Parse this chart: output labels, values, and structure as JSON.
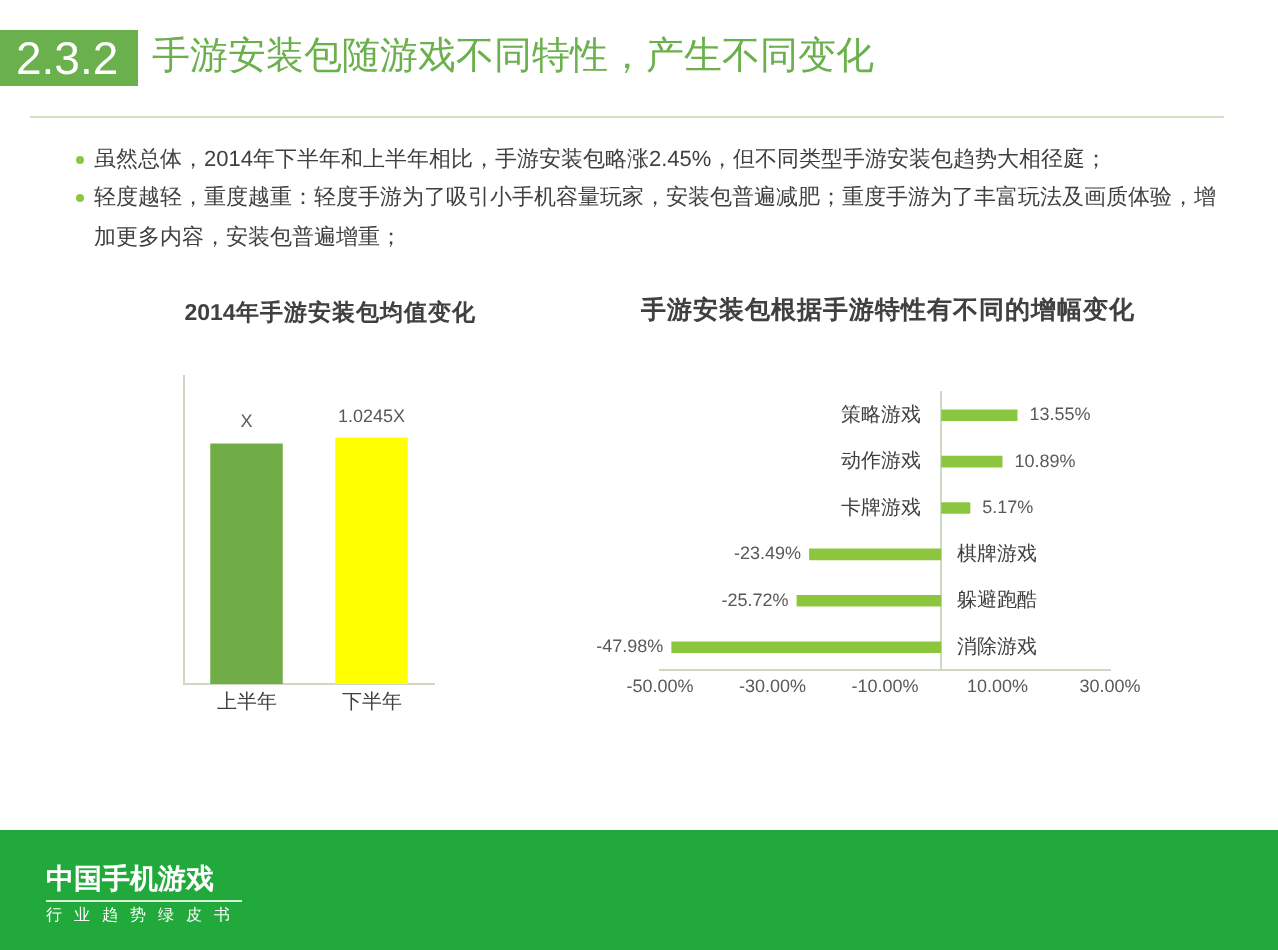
{
  "chart_data": [
    {
      "type": "other",
      "title": "手游安装包随游戏不同特性，产生不同变化",
      "annotations": [
        "2.3.2",
        "虽然总体，2014年下半年和上半年相比，手游安装包略涨2.45%，但不同类型手游安装包趋势大相径庭；",
        "轻度越轻，重度越重：轻度手游为了吸引小手机容量玩家，安装包普遍减肥；重度手游为了丰富玩法及画质体验，增加更多内容，安装包普遍增重；",
        "中国手机游戏",
        "行业趋势绿皮书"
      ]
    },
    {
      "type": "bar",
      "title": "2014年手游安装包均值变化",
      "categories": [
        "上半年",
        "下半年"
      ],
      "values": [
        1,
        1.0245
      ],
      "colors": [
        "#70ad47",
        "#ffff00"
      ],
      "value_labels": [
        "X",
        "1.0245X"
      ],
      "tick_labels": "x"
    },
    {
      "type": "bar",
      "orientation": "horizontal",
      "title": "手游安装包根据手游特性有不同的增幅变化",
      "categories": [
        "策略游戏",
        "动作游戏",
        "卡牌游戏",
        "棋牌游戏",
        "躲避跑酷",
        "消除游戏"
      ],
      "values": [
        13.55,
        10.89,
        5.17,
        -23.49,
        -25.72,
        -47.98
      ],
      "color": "#8cc63f",
      "value_labels": [
        "13.55%",
        "10.89%",
        "5.17%",
        "-23.49%",
        "-25.72%",
        "-47.98%"
      ],
      "xlim": [
        -50,
        30
      ],
      "xticks": [
        {
          "value": -50,
          "label": "-50.00%"
        },
        {
          "value": -30,
          "label": "-30.00%"
        },
        {
          "value": -10,
          "label": "-10.00%"
        },
        {
          "value": 10,
          "label": "10.00%"
        },
        {
          "value": 30,
          "label": "30.00%"
        }
      ]
    }
  ]
}
